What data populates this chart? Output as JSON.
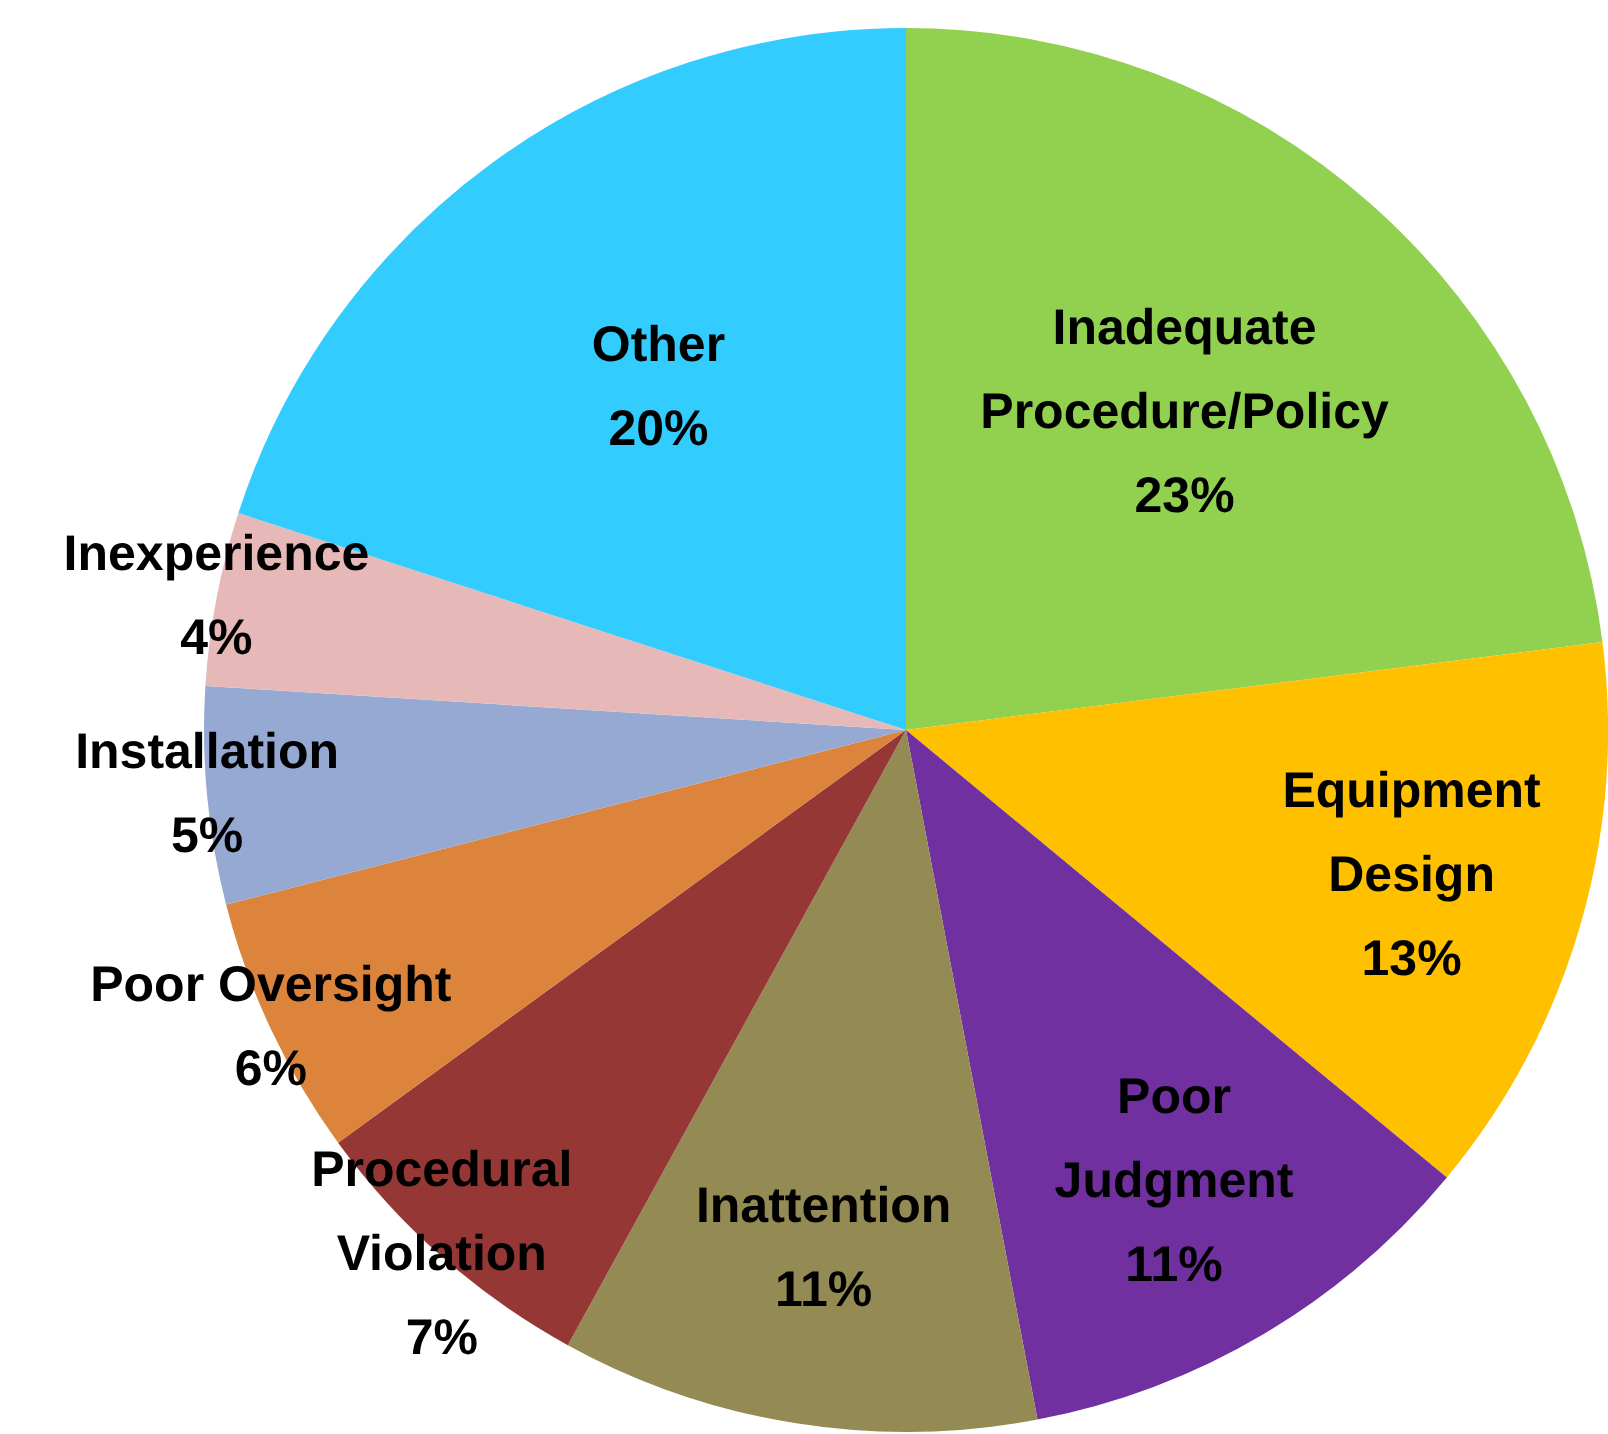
{
  "chart_data": {
    "type": "pie",
    "categories": [
      "Inadequate\nProcedure/Policy",
      "Equipment\nDesign",
      "Poor\nJudgment",
      "Inattention",
      "Procedural\nViolation",
      "Poor Oversight",
      "Installation",
      "Inexperience",
      "Other"
    ],
    "values": [
      23,
      13,
      11,
      11,
      7,
      6,
      5,
      4,
      20
    ],
    "colors": [
      "#92d050",
      "#ffc000",
      "#7030a0",
      "#948a54",
      "#953735",
      "#dd843c",
      "#95a9d3",
      "#e6b9b8",
      "#33ccff"
    ],
    "value_labels": [
      "23%",
      "13%",
      "11%",
      "11%",
      "7%",
      "6%",
      "5%",
      "4%",
      "20%"
    ],
    "legend": false
  }
}
